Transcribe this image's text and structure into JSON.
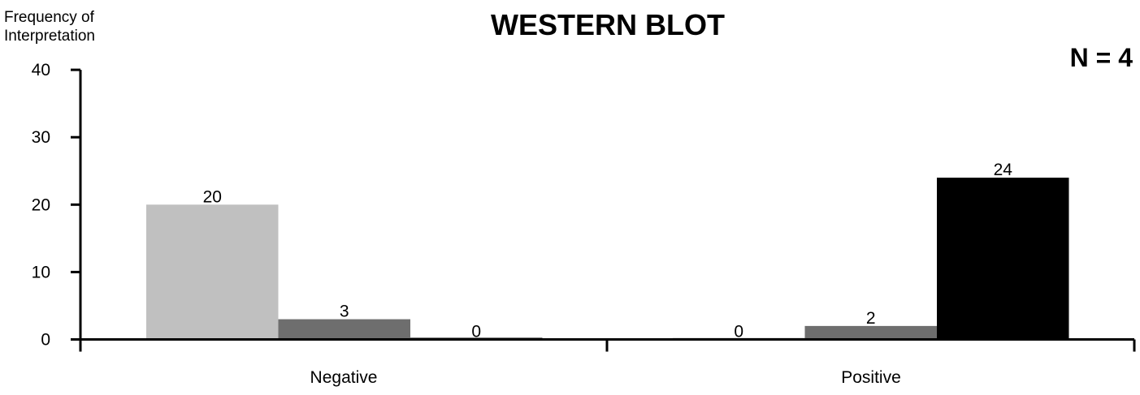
{
  "chart_data": {
    "type": "bar",
    "title": "WESTERN BLOT",
    "annotation": "N = 4",
    "ylabel_lines": [
      "Frequency of",
      "Interpretation"
    ],
    "xlabel": "",
    "ylim": [
      0,
      40
    ],
    "yticks": [
      "0",
      "10",
      "20",
      "30",
      "40"
    ],
    "categories": [
      "Negative",
      "Positive"
    ],
    "series": [
      {
        "color": "#c0c0c0",
        "values": [
          20,
          0
        ]
      },
      {
        "color": "#6e6e6e",
        "values": [
          3,
          2
        ]
      },
      {
        "color": "#000000",
        "values": [
          0,
          24
        ]
      }
    ],
    "data_labels": [
      [
        "20",
        "3",
        "0"
      ],
      [
        "0",
        "2",
        "24"
      ]
    ],
    "grid": false,
    "legend": "none"
  }
}
